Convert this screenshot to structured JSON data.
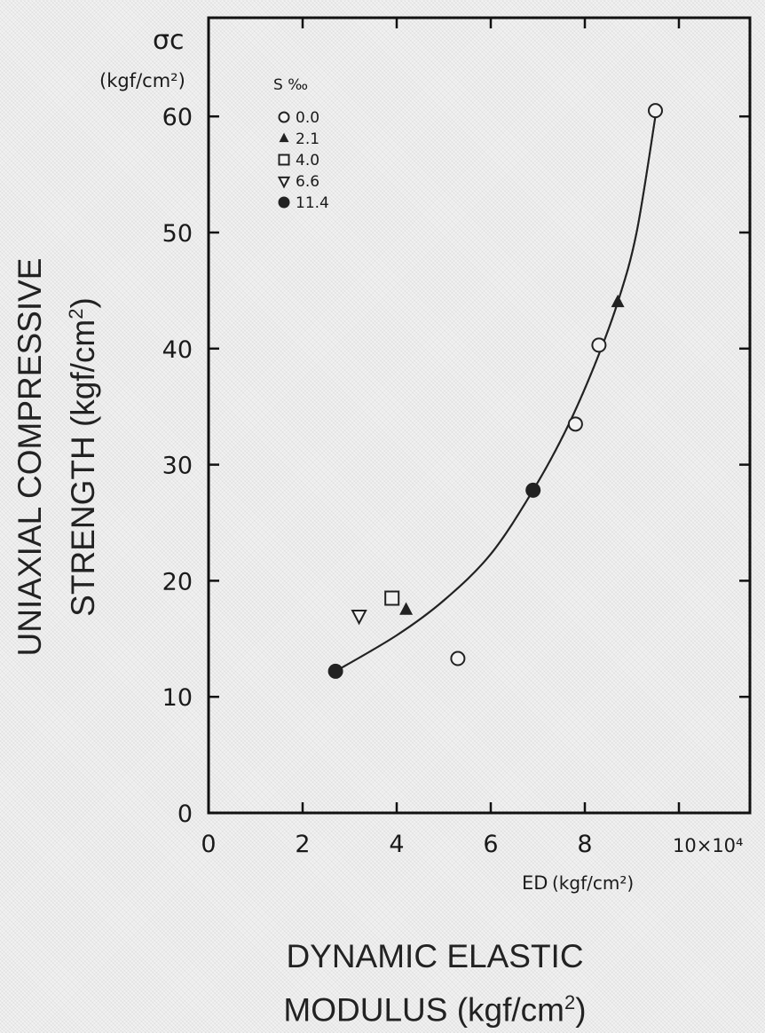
{
  "chart_data": {
    "type": "scatter",
    "corner_ylabel": {
      "symbol": "σc",
      "unit": "(kgf/cm²)"
    },
    "corner_xlabel": {
      "symbol": "ED",
      "unit": "(kgf/cm²)"
    },
    "xaxis_multiplier": "10×10⁴",
    "xlim": [
      0,
      11
    ],
    "ylim": [
      0,
      65
    ],
    "xticks": [
      "0",
      "2",
      "4",
      "6",
      "8"
    ],
    "yticks": [
      "0",
      "10",
      "20",
      "30",
      "40",
      "50",
      "60"
    ],
    "legend": {
      "title": "S ‰",
      "placement": "top-left",
      "entries": [
        {
          "label": "0.0",
          "marker": "open-circle"
        },
        {
          "label": "2.1",
          "marker": "filled-triangle"
        },
        {
          "label": "4.0",
          "marker": "open-square"
        },
        {
          "label": "6.6",
          "marker": "open-triangle-down"
        },
        {
          "label": "11.4",
          "marker": "filled-circle"
        }
      ]
    },
    "series": [
      {
        "name": "0.0",
        "marker": "open-circle",
        "points": [
          [
            9.5,
            60.5
          ],
          [
            8.3,
            40.3
          ],
          [
            7.8,
            33.5
          ],
          [
            5.3,
            13.3
          ]
        ]
      },
      {
        "name": "2.1",
        "marker": "filled-triangle",
        "points": [
          [
            8.7,
            44.0
          ],
          [
            4.2,
            17.5
          ]
        ]
      },
      {
        "name": "4.0",
        "marker": "open-square",
        "points": [
          [
            3.9,
            18.5
          ]
        ]
      },
      {
        "name": "6.6",
        "marker": "open-triangle-down",
        "points": [
          [
            3.2,
            17.0
          ]
        ]
      },
      {
        "name": "11.4",
        "marker": "filled-circle",
        "points": [
          [
            2.7,
            12.2
          ],
          [
            6.9,
            27.8
          ]
        ]
      }
    ],
    "fit_curve": [
      [
        2.7,
        12.2
      ],
      [
        4.0,
        15.3
      ],
      [
        5.0,
        18.3
      ],
      [
        6.0,
        22.3
      ],
      [
        6.9,
        27.8
      ],
      [
        7.6,
        33.0
      ],
      [
        8.2,
        38.5
      ],
      [
        8.7,
        44.0
      ],
      [
        9.1,
        50.0
      ],
      [
        9.5,
        60.0
      ]
    ],
    "grid": false
  },
  "captions": {
    "ylabel_line1": "UNIAXIAL COMPRESSIVE",
    "ylabel_line2_text": "STRENGTH (kgf/cm",
    "ylabel_line2_sup": "2",
    "ylabel_line2_end": ")",
    "xlabel_line1": "DYNAMIC ELASTIC",
    "xlabel_line2_text": "MODULUS (kgf/cm",
    "xlabel_line2_sup": "2",
    "xlabel_line2_end": ")"
  }
}
